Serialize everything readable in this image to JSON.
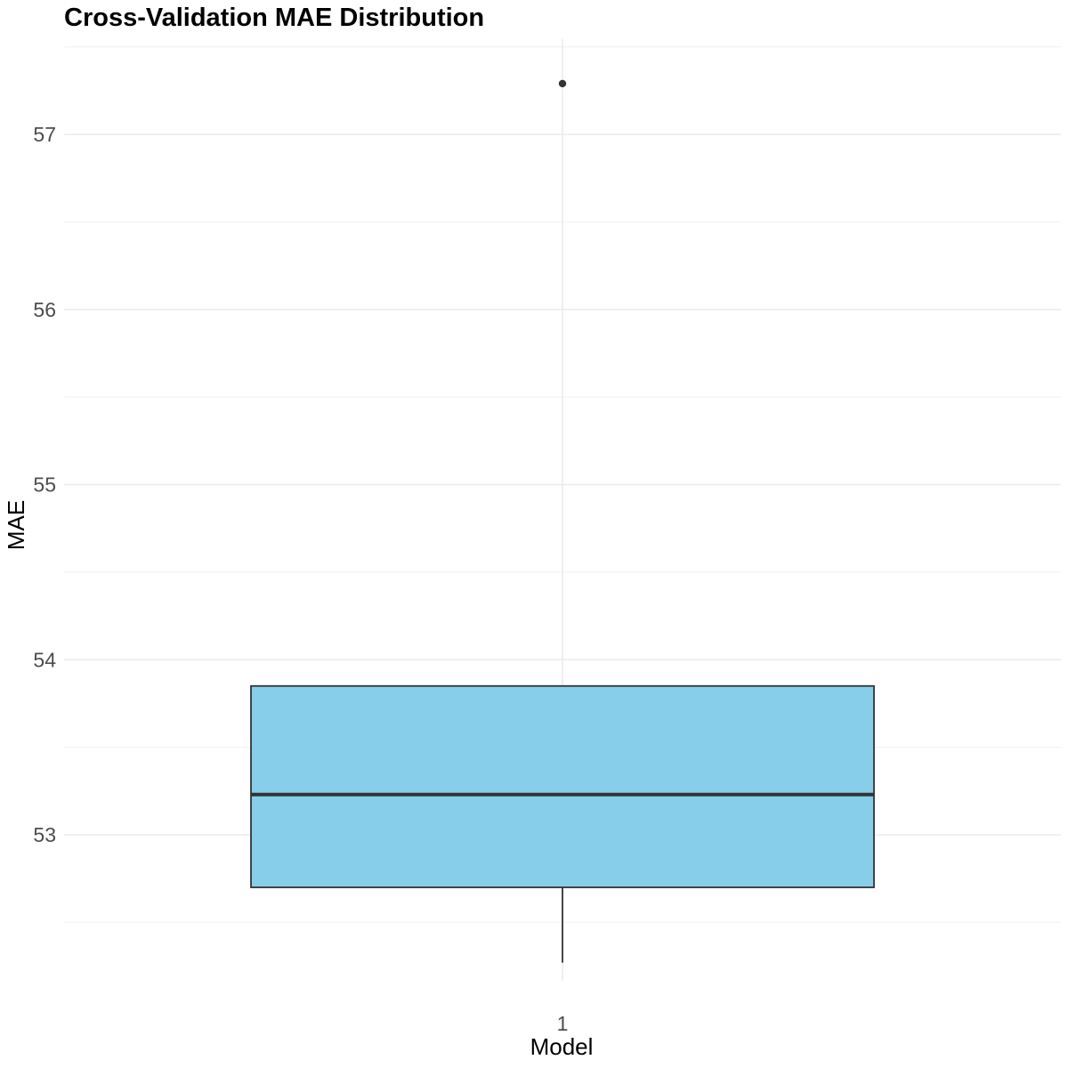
{
  "chart_data": {
    "type": "box",
    "title": "Cross-Validation MAE Distribution",
    "xlabel": "Model",
    "ylabel": "MAE",
    "categories": [
      "1"
    ],
    "ylim": [
      52.0,
      57.5
    ],
    "y_ticks": [
      53,
      54,
      55,
      56,
      57
    ],
    "y_tick_labels": [
      "53",
      "54",
      "55",
      "56",
      "57"
    ],
    "grid": true,
    "boxes": [
      {
        "category": "1",
        "whisker_low": 52.27,
        "q1": 52.7,
        "median": 53.23,
        "q3": 53.85,
        "whisker_high": 53.85,
        "outliers": [
          57.29
        ]
      }
    ],
    "colors": {
      "box_fill": "#87CEEB",
      "box_stroke": "#333333",
      "outlier": "#333333"
    }
  }
}
